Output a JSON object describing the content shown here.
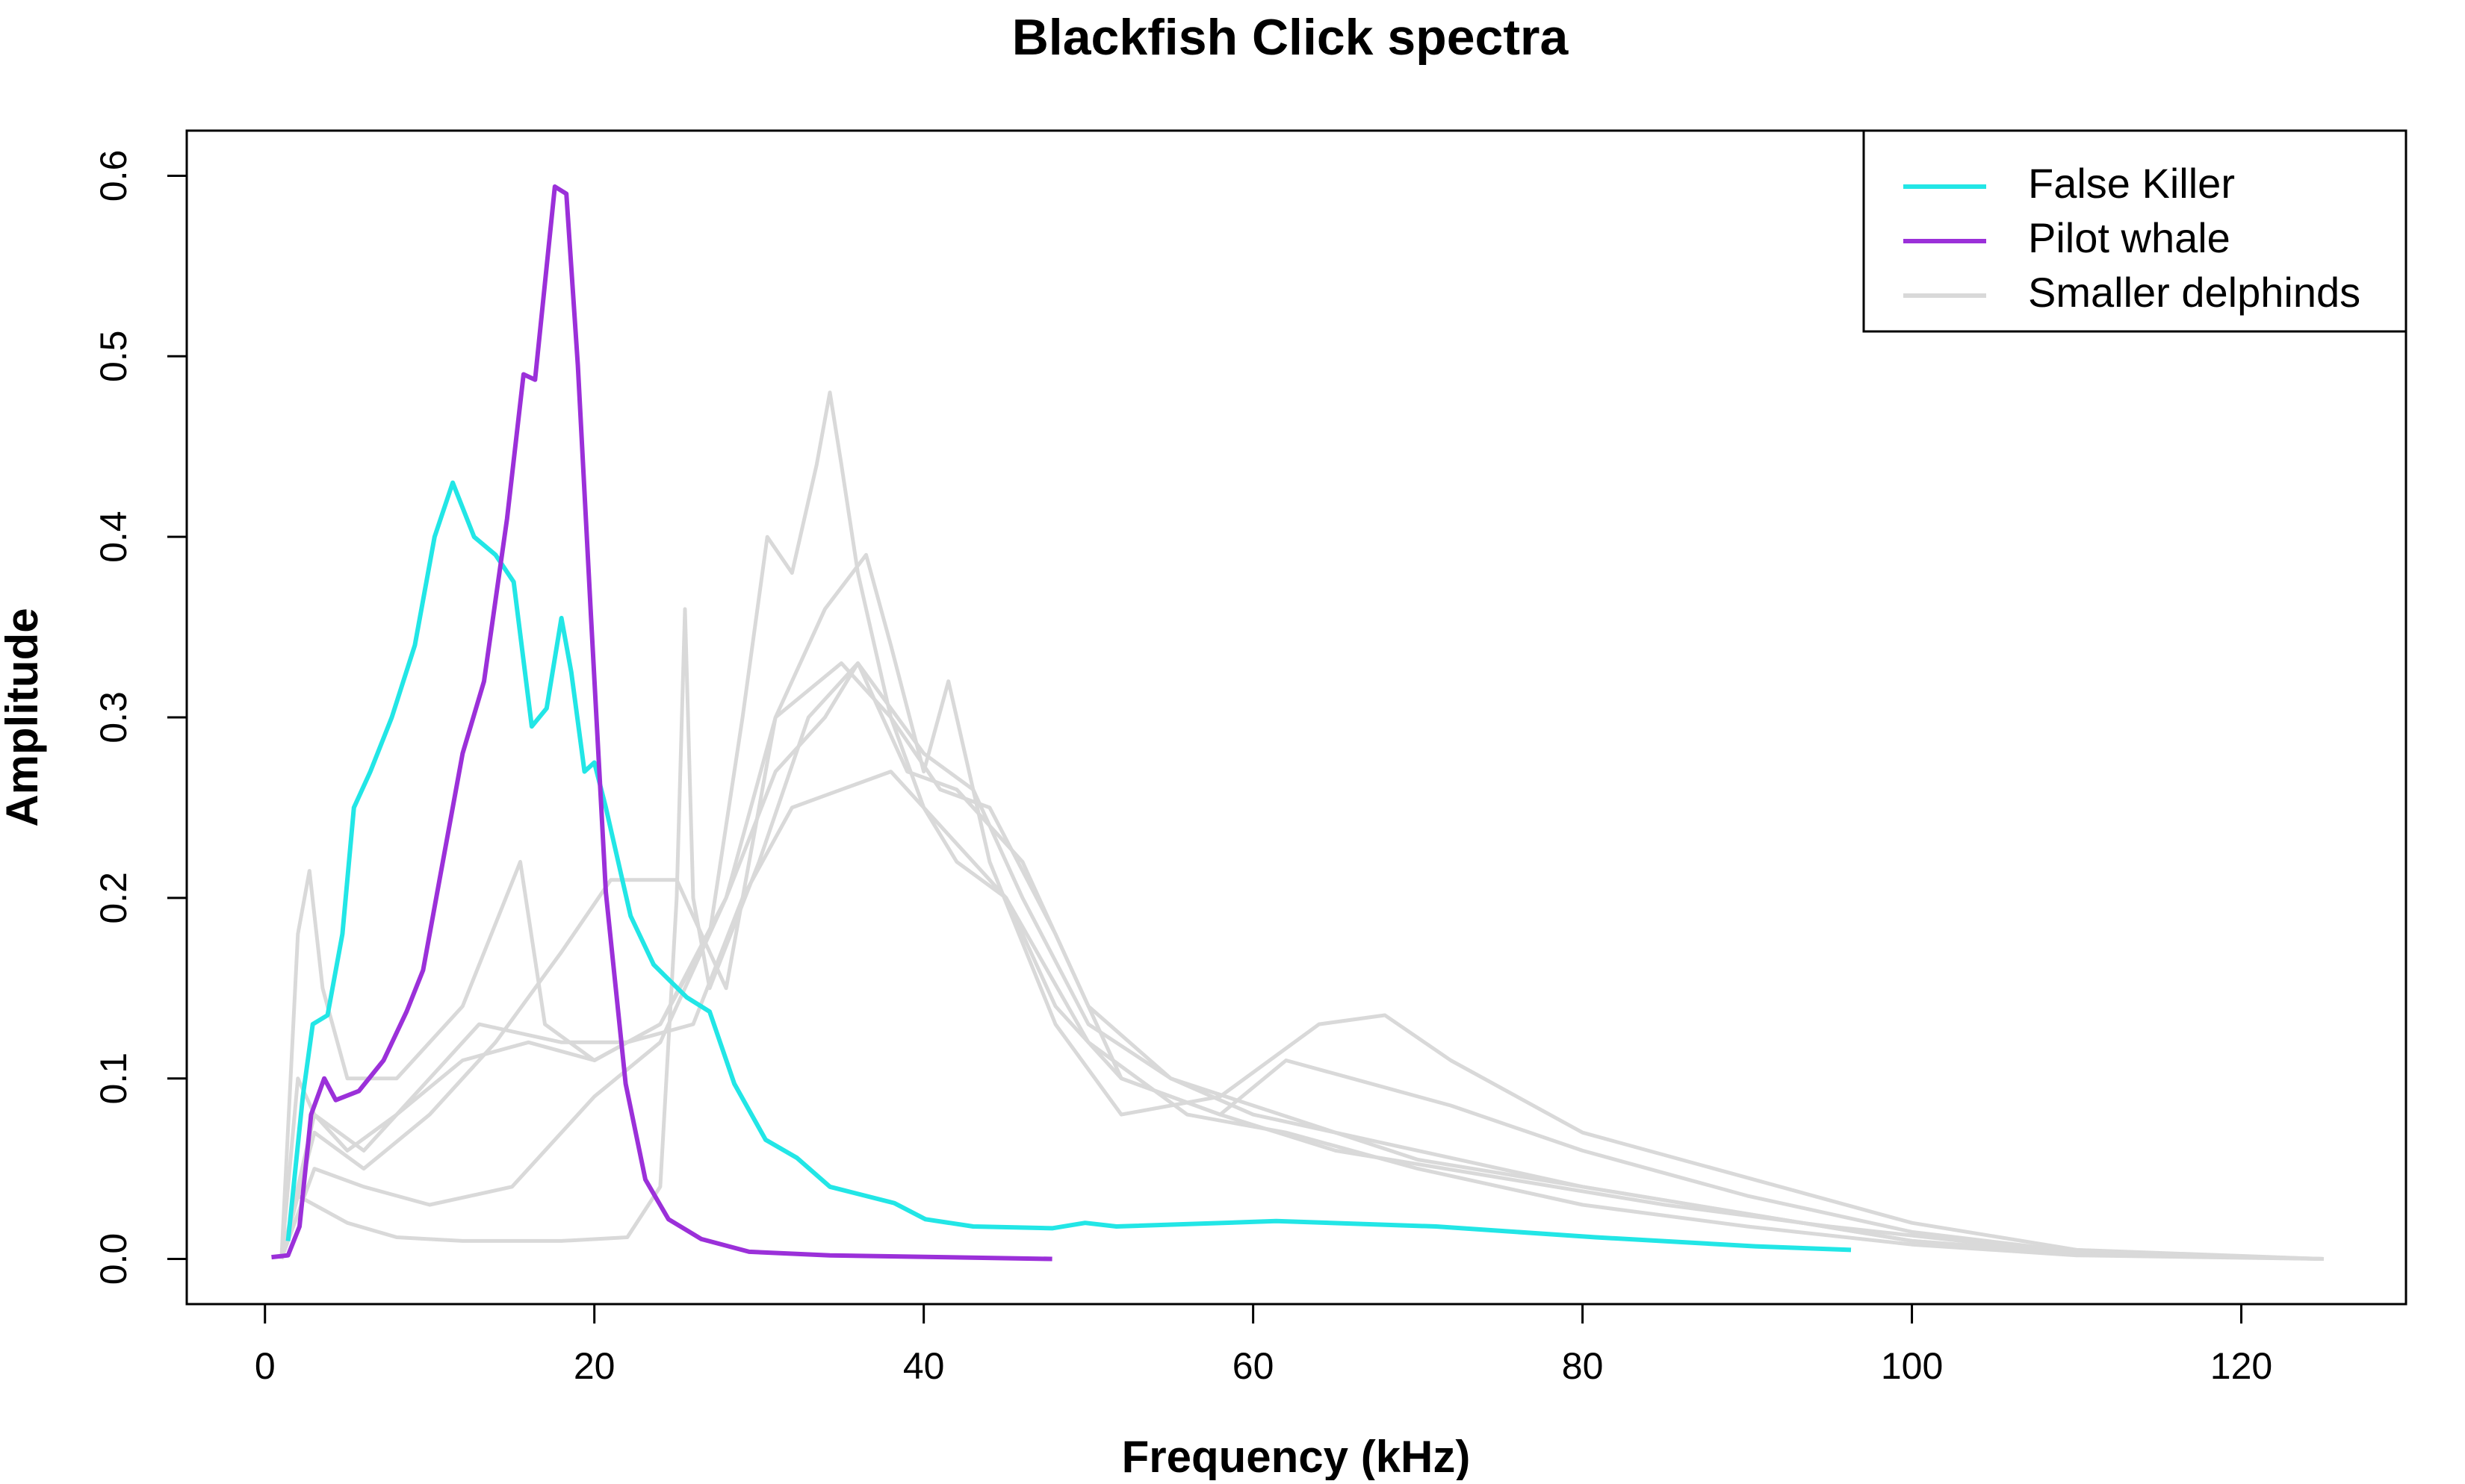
{
  "chart_data": {
    "type": "line",
    "title": "Blackfish Click spectra",
    "x_label": "Frequency (kHz)",
    "y_label": "Amplitude",
    "xlim": [
      -4.75,
      130
    ],
    "ylim": [
      -0.025,
      0.625
    ],
    "xticks": [
      0,
      20,
      40,
      60,
      80,
      100,
      120
    ],
    "yticks": [
      {
        "value": 0,
        "label": "0.0"
      },
      0.1,
      0.2,
      0.3,
      0.4,
      0.5,
      0.6
    ],
    "legend": "top-right",
    "series": [
      {
        "name": "False Killer",
        "color": "#22e6e6",
        "x": [
          1.4,
          2.3,
          2.9,
          3.8,
          4.7,
          5.4,
          6.4,
          7.7,
          9.1,
          10.3,
          11.4,
          12.7,
          14,
          15.1,
          16.2,
          17.1,
          18,
          18.6,
          19.4,
          20,
          20.7,
          22.2,
          23.6,
          25.6,
          27,
          28.5,
          30.4,
          32.3,
          34.3,
          38.2,
          40.1,
          43,
          47.8,
          49.8,
          51.7,
          61.4,
          71.1,
          80.8,
          90.5,
          96.3
        ],
        "values": [
          0.01,
          0.09,
          0.13,
          0.135,
          0.18,
          0.25,
          0.27,
          0.3,
          0.34,
          0.4,
          0.43,
          0.4,
          0.39,
          0.375,
          0.295,
          0.305,
          0.355,
          0.325,
          0.27,
          0.275,
          0.25,
          0.19,
          0.163,
          0.145,
          0.137,
          0.097,
          0.066,
          0.056,
          0.04,
          0.031,
          0.022,
          0.018,
          0.017,
          0.02,
          0.018,
          0.021,
          0.018,
          0.012,
          0.007,
          0.005
        ]
      },
      {
        "name": "Pilot whale",
        "color": "#9b30d9",
        "x": [
          0.4,
          1.4,
          2.1,
          2.8,
          3.6,
          4.3,
          5.7,
          7.2,
          8.6,
          9.6,
          10.6,
          12,
          13.3,
          14.7,
          15.7,
          16.4,
          17.6,
          18.3,
          19,
          19.8,
          20.7,
          21.9,
          23.1,
          24.5,
          26.5,
          29.4,
          34.3,
          47.8
        ],
        "values": [
          0.001,
          0.002,
          0.018,
          0.08,
          0.1,
          0.088,
          0.093,
          0.11,
          0.137,
          0.16,
          0.21,
          0.28,
          0.32,
          0.41,
          0.49,
          0.487,
          0.594,
          0.59,
          0.495,
          0.355,
          0.203,
          0.097,
          0.044,
          0.022,
          0.011,
          0.004,
          0.002,
          0
        ]
      },
      {
        "name": "Smaller delphinds",
        "color": "#d9d9d9",
        "lines": [
          {
            "x": [
              1,
              2,
              3,
              5,
              8,
              12,
              16,
              20,
              24,
              27,
              29,
              30.5,
              32,
              33.5,
              34.3,
              35,
              36,
              38,
              40,
              42,
              45,
              48,
              52,
              58,
              65,
              75,
              85,
              95,
              105,
              115,
              125
            ],
            "values": [
              0,
              0.1,
              0.08,
              0.06,
              0.08,
              0.11,
              0.12,
              0.11,
              0.13,
              0.18,
              0.3,
              0.4,
              0.38,
              0.44,
              0.48,
              0.44,
              0.38,
              0.3,
              0.25,
              0.22,
              0.2,
              0.14,
              0.1,
              0.08,
              0.06,
              0.045,
              0.03,
              0.018,
              0.008,
              0.002,
              0
            ]
          },
          {
            "x": [
              1,
              2,
              3,
              5,
              8,
              12,
              18,
              22,
              24,
              25,
              25.5,
              26,
              27,
              30,
              33,
              36,
              40,
              43,
              46,
              50,
              55,
              60,
              65,
              70,
              80,
              90,
              100,
              110,
              125
            ],
            "values": [
              0,
              0.035,
              0.03,
              0.02,
              0.012,
              0.01,
              0.01,
              0.012,
              0.04,
              0.2,
              0.36,
              0.2,
              0.15,
              0.22,
              0.3,
              0.33,
              0.28,
              0.26,
              0.2,
              0.13,
              0.1,
              0.085,
              0.07,
              0.055,
              0.04,
              0.025,
              0.01,
              0.003,
              0
            ]
          },
          {
            "x": [
              1,
              2,
              2.7,
              3.5,
              5,
              8,
              12,
              15.5,
              17,
              20,
              24,
              28,
              31,
              34,
              36.5,
              38,
              40,
              41.5,
              44,
              48,
              52,
              58,
              64,
              68,
              72,
              80,
              90,
              100,
              110,
              125
            ],
            "values": [
              0,
              0.18,
              0.215,
              0.15,
              0.1,
              0.1,
              0.14,
              0.22,
              0.13,
              0.11,
              0.13,
              0.2,
              0.3,
              0.36,
              0.39,
              0.34,
              0.27,
              0.32,
              0.22,
              0.13,
              0.08,
              0.09,
              0.13,
              0.135,
              0.11,
              0.07,
              0.045,
              0.02,
              0.005,
              0
            ]
          },
          {
            "x": [
              1,
              3,
              6,
              10,
              14,
              18,
              21,
              25,
              28,
              31,
              35,
              38,
              41,
              44,
              48,
              52,
              58,
              62,
              66,
              72,
              80,
              90,
              100,
              110,
              125
            ],
            "values": [
              0,
              0.07,
              0.05,
              0.08,
              0.12,
              0.17,
              0.21,
              0.21,
              0.15,
              0.3,
              0.33,
              0.3,
              0.26,
              0.25,
              0.18,
              0.1,
              0.08,
              0.11,
              0.1,
              0.085,
              0.06,
              0.035,
              0.015,
              0.004,
              0
            ]
          },
          {
            "x": [
              1,
              3,
              6,
              10,
              15,
              20,
              24,
              28,
              31,
              34,
              36,
              39,
              42,
              46,
              50,
              55,
              60,
              70,
              80,
              90,
              100,
              110,
              125
            ],
            "values": [
              0,
              0.05,
              0.04,
              0.03,
              0.04,
              0.09,
              0.12,
              0.2,
              0.27,
              0.3,
              0.33,
              0.27,
              0.26,
              0.22,
              0.14,
              0.1,
              0.08,
              0.06,
              0.04,
              0.025,
              0.01,
              0.003,
              0
            ]
          },
          {
            "x": [
              1,
              3,
              6,
              10,
              13,
              18,
              22,
              26,
              29,
              32,
              35,
              38,
              41,
              45,
              50,
              56,
              62,
              70,
              80,
              90,
              100,
              110,
              125
            ],
            "values": [
              0,
              0.08,
              0.06,
              0.1,
              0.13,
              0.12,
              0.12,
              0.13,
              0.2,
              0.25,
              0.26,
              0.27,
              0.24,
              0.2,
              0.12,
              0.08,
              0.07,
              0.05,
              0.03,
              0.018,
              0.008,
              0.002,
              0
            ]
          }
        ]
      }
    ]
  }
}
